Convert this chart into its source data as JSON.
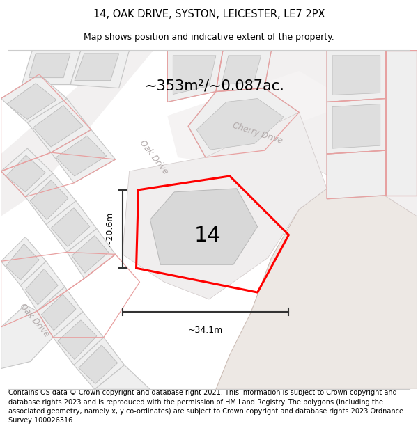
{
  "title": "14, OAK DRIVE, SYSTON, LEICESTER, LE7 2PX",
  "subtitle": "Map shows position and indicative extent of the property.",
  "area_text": "~353m²/~0.087ac.",
  "property_number": "14",
  "dim_width": "~34.1m",
  "dim_height": "~20.6m",
  "footer": "Contains OS data © Crown copyright and database right 2021. This information is subject to Crown copyright and database rights 2023 and is reproduced with the permission of HM Land Registry. The polygons (including the associated geometry, namely x, y co-ordinates) are subject to Crown copyright and database rights 2023 Ordnance Survey 100026316.",
  "title_fontsize": 10.5,
  "subtitle_fontsize": 9,
  "footer_fontsize": 7.0,
  "area_fontsize": 15,
  "number_fontsize": 22,
  "dim_fontsize": 9,
  "street_label_oak1": "Oak Drive",
  "street_label_oak2": "Oak Drive",
  "street_label_cherry": "Cherry Drive",
  "map_bg": "#f8f7f7",
  "road_fill": "#ede8e4",
  "plot_fill": "#efefef",
  "building_fill": "#dedede",
  "red_line_color": "#e8a0a0",
  "polygon_color": "#ff0000",
  "dim_color": "#333333"
}
